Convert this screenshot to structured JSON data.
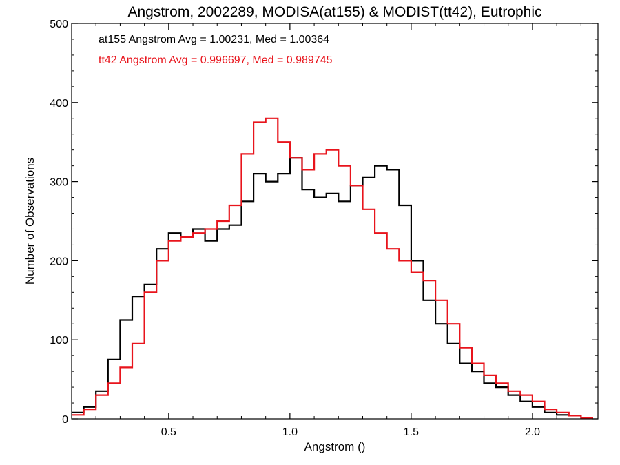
{
  "chart_data": {
    "type": "line",
    "title": "Angstrom, 2002289, MODISA(at155) & MODIST(tt42), Eutrophic",
    "xlabel": "Angstrom ()",
    "ylabel": "Number of Observations",
    "xlim": [
      0.1,
      2.27
    ],
    "ylim": [
      0,
      500
    ],
    "xticks": [
      0.5,
      1.0,
      1.5,
      2.0
    ],
    "xtick_labels": [
      "0.5",
      "1.0",
      "1.5",
      "2.0"
    ],
    "yticks": [
      0,
      100,
      200,
      300,
      400,
      500
    ],
    "ytick_labels": [
      "0",
      "100",
      "200",
      "300",
      "400",
      "500"
    ],
    "grid": false,
    "series": [
      {
        "name": "at155",
        "color": "#000000",
        "annotation": "at155 Angstrom Avg = 1.00231, Med = 1.00364",
        "x": [
          0.1,
          0.15,
          0.2,
          0.25,
          0.3,
          0.35,
          0.4,
          0.45,
          0.5,
          0.55,
          0.6,
          0.65,
          0.7,
          0.75,
          0.8,
          0.85,
          0.9,
          0.95,
          1.0,
          1.05,
          1.1,
          1.15,
          1.2,
          1.25,
          1.3,
          1.35,
          1.4,
          1.45,
          1.5,
          1.55,
          1.6,
          1.65,
          1.7,
          1.75,
          1.8,
          1.85,
          1.9,
          1.95,
          2.0,
          2.05,
          2.1,
          2.15
        ],
        "y": [
          8,
          15,
          35,
          75,
          125,
          155,
          170,
          215,
          235,
          230,
          240,
          225,
          240,
          245,
          275,
          310,
          300,
          310,
          330,
          290,
          280,
          285,
          275,
          295,
          305,
          320,
          315,
          270,
          200,
          150,
          120,
          95,
          70,
          60,
          45,
          40,
          30,
          22,
          15,
          8,
          5,
          15
        ]
      },
      {
        "name": "tt42",
        "color": "#e8141c",
        "annotation": "tt42 Angstrom Avg = 0.996697, Med = 0.989745",
        "x": [
          0.1,
          0.15,
          0.2,
          0.25,
          0.3,
          0.35,
          0.4,
          0.45,
          0.5,
          0.55,
          0.6,
          0.65,
          0.7,
          0.75,
          0.8,
          0.85,
          0.9,
          0.95,
          1.0,
          1.05,
          1.1,
          1.15,
          1.2,
          1.25,
          1.3,
          1.35,
          1.4,
          1.45,
          1.5,
          1.55,
          1.6,
          1.65,
          1.7,
          1.75,
          1.8,
          1.85,
          1.9,
          1.95,
          2.0,
          2.05,
          2.1,
          2.15,
          2.2,
          2.25
        ],
        "y": [
          5,
          12,
          30,
          45,
          65,
          95,
          160,
          200,
          225,
          230,
          235,
          240,
          250,
          270,
          335,
          375,
          380,
          350,
          330,
          315,
          335,
          340,
          320,
          295,
          265,
          235,
          215,
          200,
          185,
          175,
          150,
          120,
          90,
          70,
          55,
          45,
          35,
          30,
          22,
          12,
          8,
          4,
          1,
          0
        ]
      }
    ]
  }
}
